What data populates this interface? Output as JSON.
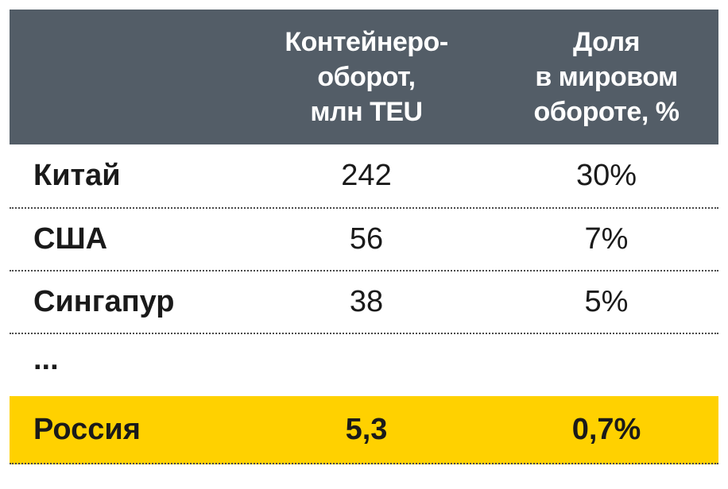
{
  "chart_data": {
    "type": "table",
    "columns": [
      {
        "lines": [
          "",
          "",
          ""
        ]
      },
      {
        "lines": [
          "Контейнеро-",
          "оборот,",
          "млн TEU"
        ]
      },
      {
        "lines": [
          "Доля",
          "в мировом",
          "обороте, %"
        ]
      }
    ],
    "rows": [
      {
        "label": "Китай",
        "teu": "242",
        "share": "30%"
      },
      {
        "label": "США",
        "teu": "56",
        "share": "7%"
      },
      {
        "label": "Сингапур",
        "teu": "38",
        "share": "5%"
      },
      {
        "label": "...",
        "teu": "",
        "share": ""
      },
      {
        "label": "Россия",
        "teu": "5,3",
        "share": "0,7%"
      }
    ],
    "highlight_row_index": 4,
    "colors": {
      "header_bg": "#535d67",
      "header_text": "#ffffff",
      "highlight_bg": "#ffd100",
      "text": "#1a1a1a"
    }
  }
}
